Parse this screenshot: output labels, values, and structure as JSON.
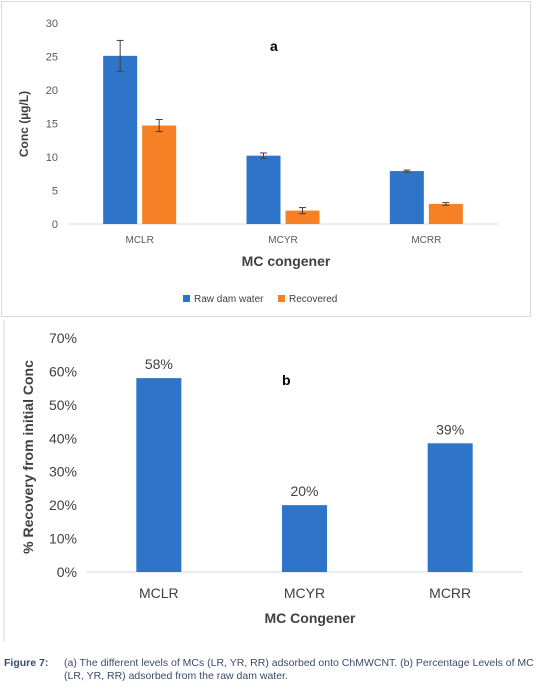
{
  "chart_data": [
    {
      "id": "a",
      "type": "bar",
      "panel_label": "a",
      "title": "",
      "xlabel": "MC congener",
      "ylabel": "Conc (µg/L)",
      "categories": [
        "MCLR",
        "MCYR",
        "MCRR"
      ],
      "ylim": [
        0,
        30
      ],
      "yticks": [
        "0",
        "5",
        "10",
        "15",
        "20",
        "25",
        "30"
      ],
      "grid": false,
      "legend_position": "bottom",
      "series": [
        {
          "name": "Raw dam water",
          "color": "#2e75c9",
          "values": [
            25.1,
            10.2,
            7.9
          ],
          "errors": [
            2.3,
            0.4,
            0.15
          ]
        },
        {
          "name": "Recovered",
          "color": "#f58026",
          "values": [
            14.7,
            2.0,
            3.0
          ],
          "errors": [
            0.9,
            0.45,
            0.2
          ]
        }
      ]
    },
    {
      "id": "b",
      "type": "bar",
      "panel_label": "b",
      "title": "",
      "xlabel": "MC Congener",
      "ylabel": "% Recovery from initial Conc",
      "categories": [
        "MCLR",
        "MCYR",
        "MCRR"
      ],
      "ylim": [
        0,
        0.7
      ],
      "yticks": [
        "0%",
        "10%",
        "20%",
        "30%",
        "40%",
        "50%",
        "60%",
        "70%"
      ],
      "grid": false,
      "series": [
        {
          "name": "",
          "color": "#2e75c9",
          "values": [
            0.58,
            0.2,
            0.385
          ],
          "labels": [
            "58%",
            "20%",
            "39%"
          ]
        }
      ]
    }
  ],
  "caption": {
    "label": "Figure 7:",
    "text": "(a) The different levels of MCs (LR, YR, RR) adsorbed onto ChMWCNT. (b) Percentage Levels of MC (LR, YR, RR) adsorbed from the raw dam water."
  }
}
